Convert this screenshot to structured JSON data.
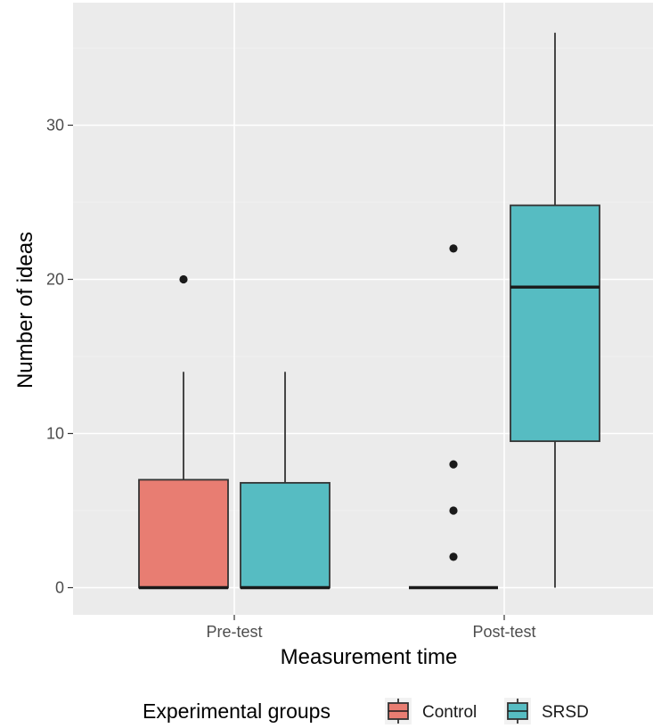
{
  "chart_data": {
    "type": "boxplot",
    "title": "",
    "xlabel": "Measurement time",
    "ylabel": "Number of ideas",
    "categories": [
      "Pre-test",
      "Post-test"
    ],
    "ylim": [
      -1.8,
      37.7
    ],
    "yticks": [
      0,
      10,
      20,
      30
    ],
    "ytick_labels": [
      "0",
      "10",
      "20",
      "30"
    ],
    "grid": true,
    "legend": {
      "title": "Experimental groups",
      "position": "bottom"
    },
    "series": [
      {
        "name": "Control",
        "color": "#e87d72",
        "boxes": [
          {
            "category": "Pre-test",
            "q1": 0,
            "median": 0,
            "q3": 7,
            "whisker_low": 0,
            "whisker_high": 14,
            "outliers": [
              20
            ]
          },
          {
            "category": "Post-test",
            "q1": 0,
            "median": 0,
            "q3": 0,
            "whisker_low": 0,
            "whisker_high": 0,
            "outliers": [
              2,
              5,
              8,
              22
            ]
          }
        ]
      },
      {
        "name": "SRSD",
        "color": "#56bcc2",
        "boxes": [
          {
            "category": "Pre-test",
            "q1": 0,
            "median": 0,
            "q3": 6.8,
            "whisker_low": 0,
            "whisker_high": 14,
            "outliers": []
          },
          {
            "category": "Post-test",
            "q1": 9.5,
            "median": 19.5,
            "q3": 24.8,
            "whisker_low": 0,
            "whisker_high": 36,
            "outliers": []
          }
        ]
      }
    ]
  }
}
